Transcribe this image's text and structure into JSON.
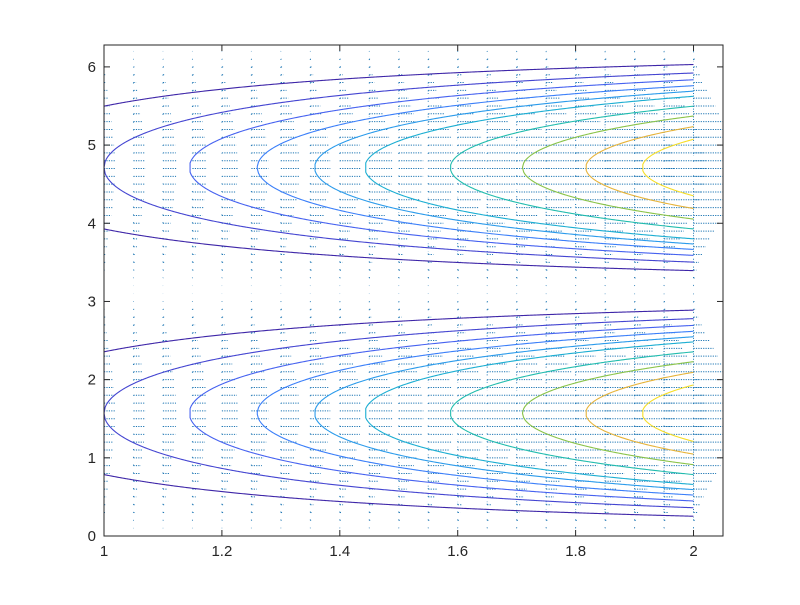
{
  "chart_data": {
    "type": "contour",
    "title": "",
    "xlabel": "",
    "ylabel": "",
    "xlim": [
      1,
      2.05
    ],
    "ylim": [
      0,
      6.28
    ],
    "x_ticks": [
      {
        "value": 1,
        "label": "1"
      },
      {
        "value": 1.2,
        "label": "1.2"
      },
      {
        "value": 1.4,
        "label": "1.4"
      },
      {
        "value": 1.6,
        "label": "1.6"
      },
      {
        "value": 1.8,
        "label": "1.8"
      },
      {
        "value": 2,
        "label": "2"
      }
    ],
    "y_ticks": [
      {
        "value": 0,
        "label": "0"
      },
      {
        "value": 1,
        "label": "1"
      },
      {
        "value": 2,
        "label": "2"
      },
      {
        "value": 3,
        "label": "3"
      },
      {
        "value": 4,
        "label": "4"
      },
      {
        "value": 5,
        "label": "5"
      },
      {
        "value": 6,
        "label": "6"
      }
    ],
    "grid": false,
    "function": "z = x^3 * sin(y)^2, overlaid with quiver gradient field",
    "contour_levels": [
      {
        "level": 0.5,
        "color": "#3e26a8"
      },
      {
        "level": 1.0,
        "color": "#4445d1"
      },
      {
        "level": 1.5,
        "color": "#4662f0"
      },
      {
        "level": 2.0,
        "color": "#3b7ff9"
      },
      {
        "level": 2.5,
        "color": "#2b9beb"
      },
      {
        "level": 3.0,
        "color": "#1caed2"
      },
      {
        "level": 4.0,
        "color": "#22bcae"
      },
      {
        "level": 5.0,
        "color": "#8ac349"
      },
      {
        "level": 6.0,
        "color": "#e6b33a"
      },
      {
        "level": 7.0,
        "color": "#f6de27"
      }
    ],
    "quiver": {
      "color": "#1f77b4",
      "x": [
        1.0,
        1.05,
        1.1,
        1.15,
        1.2,
        1.25,
        1.3,
        1.35,
        1.4,
        1.45,
        1.5,
        1.55,
        1.6,
        1.65,
        1.7,
        1.75,
        1.8,
        1.85,
        1.9,
        1.95,
        2.0
      ],
      "y_step": 0.1,
      "y_range": [
        0,
        6.2
      ]
    }
  }
}
